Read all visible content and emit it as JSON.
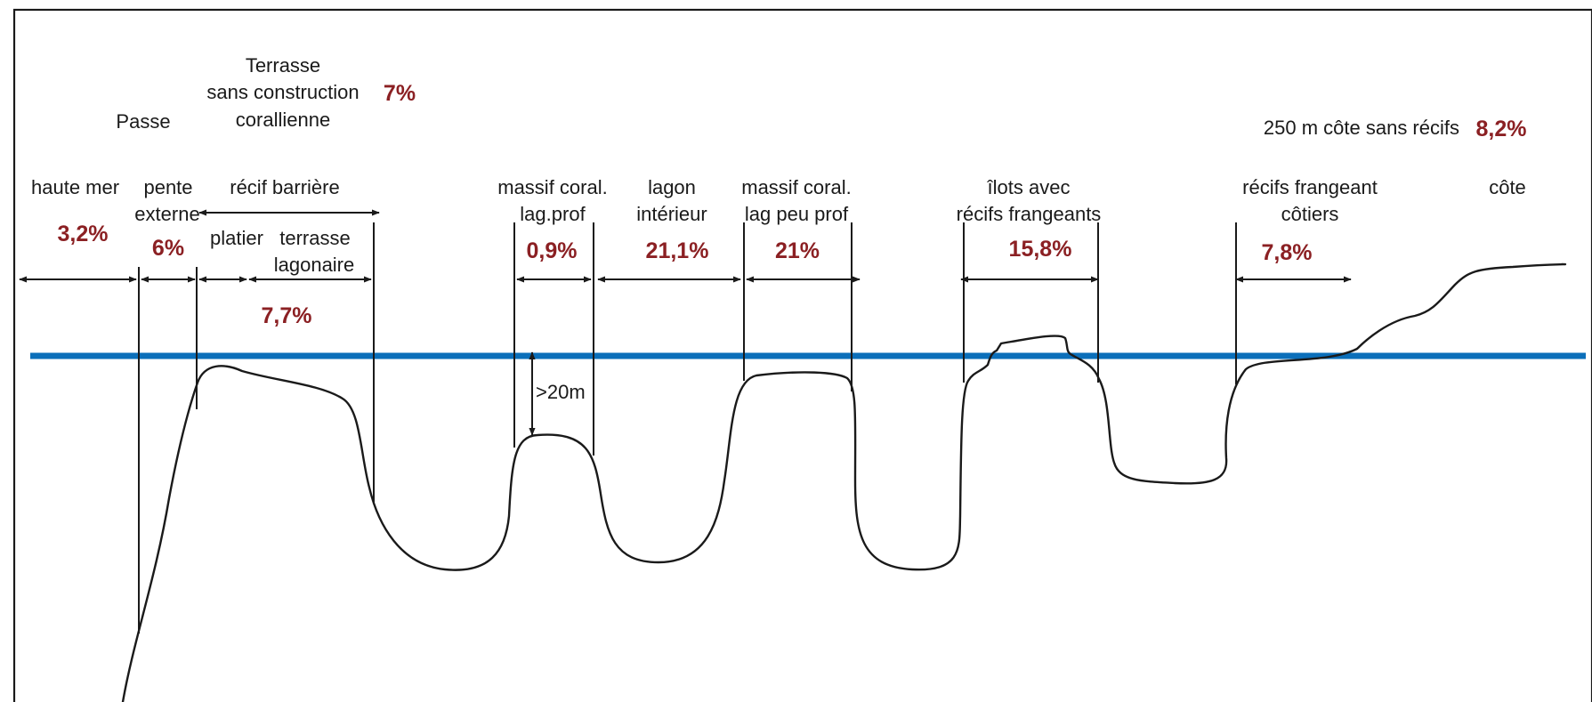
{
  "labels": {
    "haute_mer": "haute mer",
    "pente": "pente",
    "externe": "externe",
    "passe": "Passe",
    "terrasse_l1": "Terrasse",
    "terrasse_l2": "sans construction",
    "terrasse_l3": "corallienne",
    "recif_barriere": "récif barrière",
    "platier": "platier",
    "terrasse": "terrasse",
    "lagonaire": "lagonaire",
    "massif_prof_l1": "massif coral.",
    "massif_prof_l2": "lag.prof",
    "lagon_l1": "lagon",
    "lagon_l2": "intérieur",
    "massif_peu_l1": "massif coral.",
    "massif_peu_l2": "lag peu prof",
    "ilots_l1": "îlots avec",
    "ilots_l2": "récifs frangeants",
    "recifs_l1": "récifs frangeant",
    "recifs_l2": "côtiers",
    "cote_sans_recifs": "250 m côte sans récifs",
    "cote": "côte",
    "depth": ">20m"
  },
  "percentages": {
    "haute_mer": "3,2%",
    "pente_externe": "6%",
    "terrasse_sans_construction": "7%",
    "platier_terrasse": "7,7%",
    "massif_lag_prof": "0,9%",
    "lagon_interieur": "21,1%",
    "massif_lag_peu_prof": "21%",
    "ilots": "15,8%",
    "recifs_frangeants": "7,8%",
    "cote_sans_recifs": "8,2%"
  },
  "colors": {
    "percentage": "#8b2023",
    "water_line": "#0b6fba",
    "line": "#1a1a1a",
    "frame": "#1a1a1a"
  }
}
